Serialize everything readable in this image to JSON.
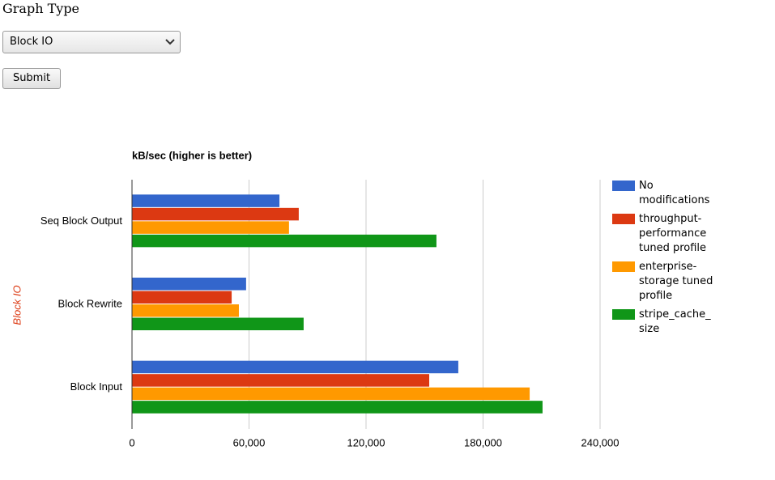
{
  "form": {
    "label": "Graph Type",
    "select": "Block IO",
    "submit": "Submit"
  },
  "chart_data": {
    "type": "hbar",
    "title": "kB/sec (higher is better)",
    "y_label": "Block IO",
    "categories": [
      "Seq Block Output",
      "Block Rewrite",
      "Block Input"
    ],
    "series": [
      {
        "name": "No modifications",
        "color": "#3366cc",
        "values": [
          75600,
          58500,
          167300
        ]
      },
      {
        "name": "throughput-performance tuned profile",
        "color": "#dc3912",
        "values": [
          85500,
          51100,
          152400
        ]
      },
      {
        "name": "enterprise-storage tuned profile",
        "color": "#ff9900",
        "values": [
          80500,
          54800,
          203900
        ]
      },
      {
        "name": "stripe_cache_size",
        "color": "#109618",
        "values": [
          156100,
          88000,
          210500
        ]
      }
    ],
    "xlim": [
      0,
      240000
    ],
    "xticks": [
      0,
      {
        "value": 60000,
        "label": "60,000"
      },
      {
        "value": 120000,
        "label": "120,000"
      },
      {
        "value": 180000,
        "label": "180,000"
      },
      {
        "value": 240000,
        "label": "240,000"
      }
    ],
    "grid": true,
    "legend": "right"
  }
}
